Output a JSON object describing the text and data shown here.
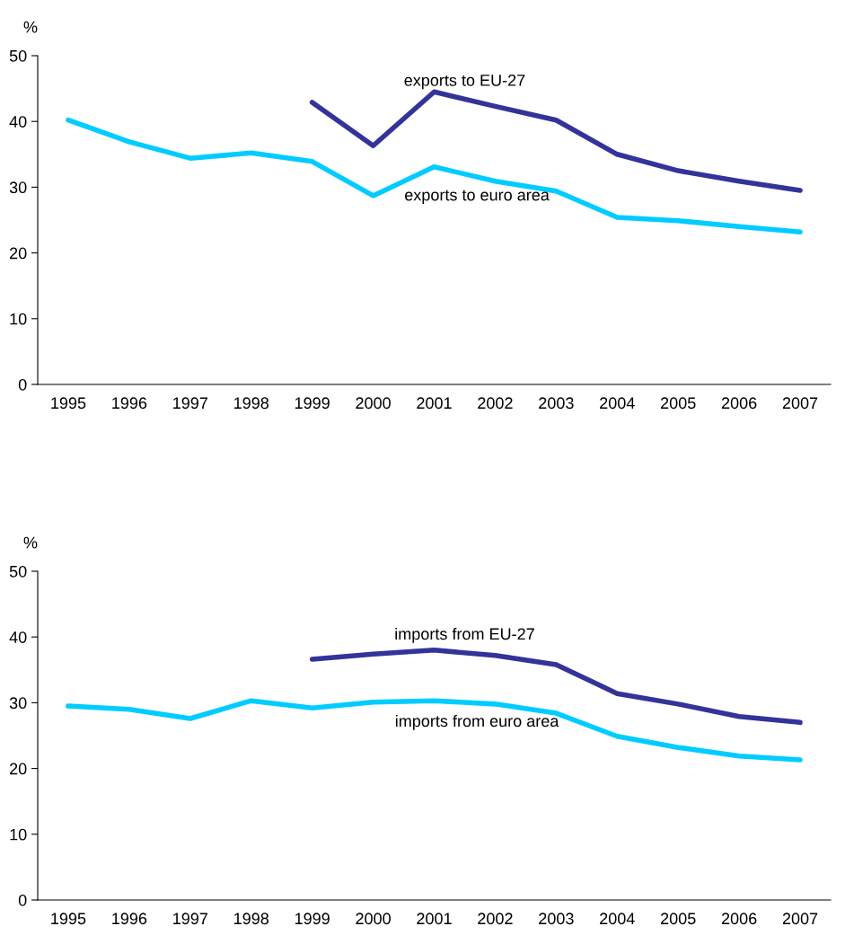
{
  "chart_data": [
    {
      "type": "line",
      "ylabel": "%",
      "categories": [
        "1995",
        "1996",
        "1997",
        "1998",
        "1999",
        "2000",
        "2001",
        "2002",
        "2003",
        "2004",
        "2005",
        "2006",
        "2007"
      ],
      "ylim": [
        0,
        50
      ],
      "yticks": [
        0,
        10,
        20,
        30,
        40,
        50
      ],
      "grid": false,
      "legend": false,
      "series": [
        {
          "name": "exports to EU-27",
          "color": "#333399",
          "values": [
            null,
            null,
            null,
            null,
            42.9,
            36.3,
            44.5,
            42.3,
            40.2,
            35.0,
            32.5,
            30.9,
            29.5
          ]
        },
        {
          "name": "exports to euro area",
          "color": "#00ccff",
          "values": [
            40.2,
            36.9,
            34.4,
            35.2,
            33.9,
            28.7,
            33.1,
            30.9,
            29.4,
            25.4,
            24.9,
            24.0,
            23.2
          ]
        }
      ]
    },
    {
      "type": "line",
      "ylabel": "%",
      "categories": [
        "1995",
        "1996",
        "1997",
        "1998",
        "1999",
        "2000",
        "2001",
        "2002",
        "2003",
        "2004",
        "2005",
        "2006",
        "2007"
      ],
      "ylim": [
        0,
        50
      ],
      "yticks": [
        0,
        10,
        20,
        30,
        40,
        50
      ],
      "grid": false,
      "legend": false,
      "series": [
        {
          "name": "imports from EU-27",
          "color": "#333399",
          "values": [
            null,
            null,
            null,
            null,
            36.6,
            37.4,
            38.0,
            37.2,
            35.8,
            31.4,
            29.8,
            27.9,
            27.0
          ]
        },
        {
          "name": "imports from euro area",
          "color": "#00ccff",
          "values": [
            29.5,
            29.0,
            27.6,
            30.3,
            29.2,
            30.1,
            30.3,
            29.8,
            28.4,
            24.9,
            23.2,
            21.9,
            21.3
          ]
        }
      ]
    }
  ]
}
